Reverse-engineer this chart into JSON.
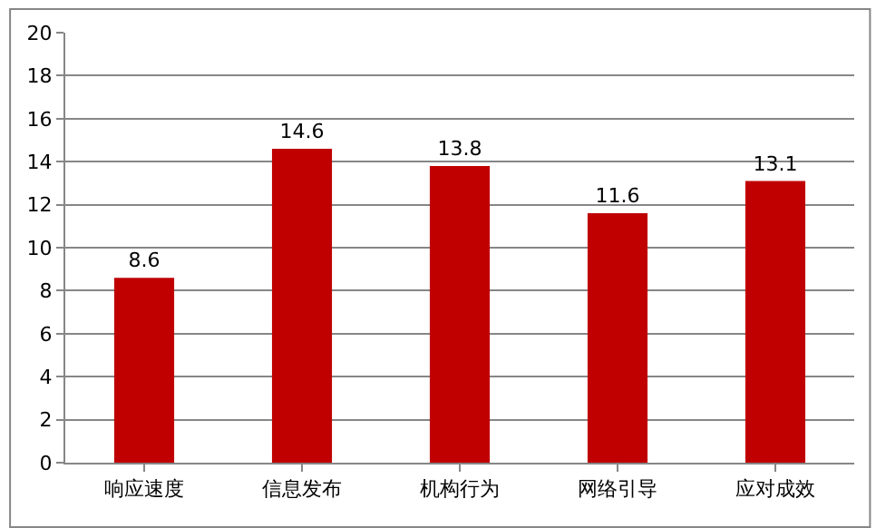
{
  "chart_data": {
    "type": "bar",
    "categories": [
      "响应速度",
      "信息发布",
      "机构行为",
      "网络引导",
      "应对成效"
    ],
    "values": [
      8.6,
      14.6,
      13.8,
      11.6,
      13.1
    ],
    "color": "#c00000",
    "ylim": [
      0,
      20
    ],
    "yticks": [
      0,
      2,
      4,
      6,
      8,
      10,
      12,
      14,
      16,
      18,
      20
    ],
    "grid": "y",
    "data_labels": true
  }
}
